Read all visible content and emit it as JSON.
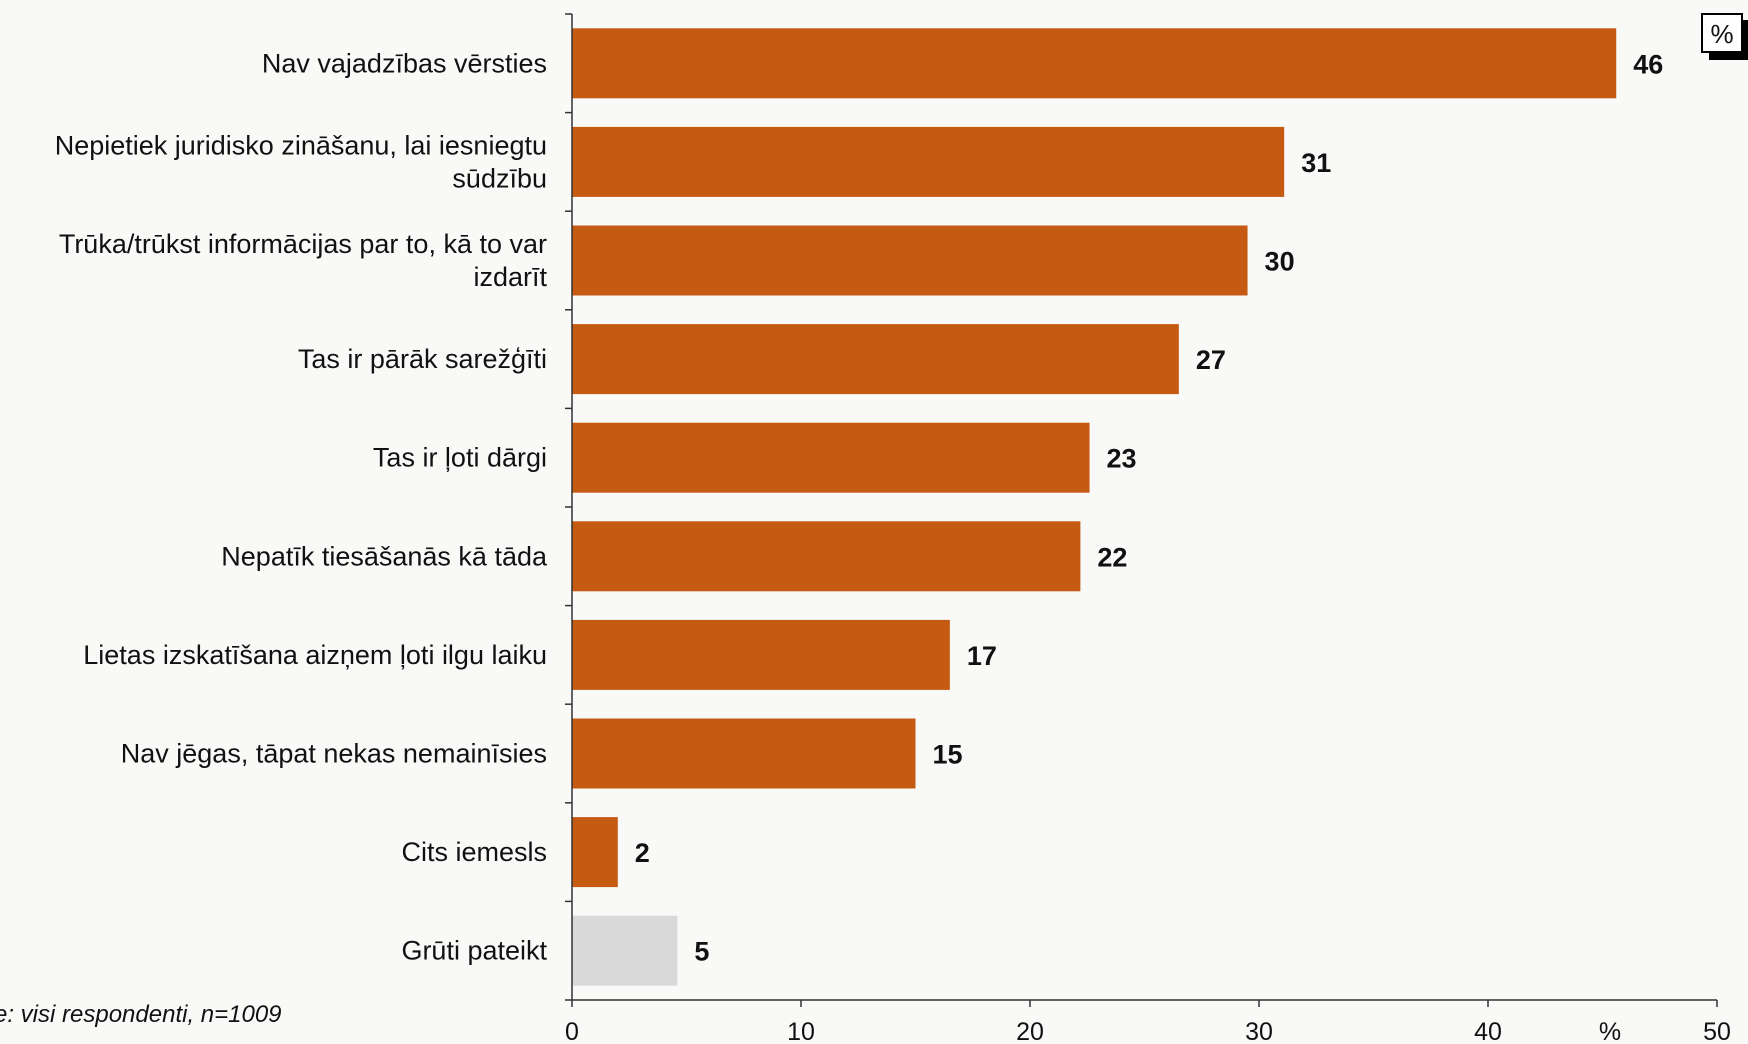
{
  "chart_data": {
    "type": "bar",
    "orientation": "horizontal",
    "categories": [
      "Nav vajadzības vērsties",
      "Nepietiek juridisko zināšanu, lai iesniegtu sūdzību",
      "Trūka/trūkst informācijas par to, kā to var izdarīt",
      "Tas ir pārāk sarežģīti",
      "Tas ir ļoti dārgi",
      "Nepatīk tiesāšanās kā tāda",
      "Lietas izskatīšana aizņem ļoti ilgu laiku",
      "Nav jēgas, tāpat nekas nemainīsies",
      "Cits iemesls",
      "Grūti pateikt"
    ],
    "category_lines": [
      [
        "Nav vajadzības vērsties"
      ],
      [
        "Nepietiek juridisko zināšanu, lai iesniegtu",
        "sūdzību"
      ],
      [
        "Trūka/trūkst informācijas par to, kā to var",
        "izdarīt"
      ],
      [
        "Tas ir pārāk sarežģīti"
      ],
      [
        "Tas ir ļoti dārgi"
      ],
      [
        "Nepatīk tiesāšanās kā tāda"
      ],
      [
        "Lietas izskatīšana aizņem ļoti ilgu laiku"
      ],
      [
        "Nav jēgas, tāpat nekas nemainīsies"
      ],
      [
        "Cits iemesls"
      ],
      [
        "Grūti pateikt"
      ]
    ],
    "values": [
      45.6,
      31.1,
      29.5,
      26.5,
      22.6,
      22.2,
      16.5,
      15.0,
      2.0,
      4.6
    ],
    "value_labels": [
      "46",
      "31",
      "30",
      "27",
      "23",
      "22",
      "17",
      "15",
      "2",
      "5"
    ],
    "bar_colors": [
      "#c55a13",
      "#c55a13",
      "#c55a13",
      "#c55a13",
      "#c55a13",
      "#c55a13",
      "#c55a13",
      "#c55a13",
      "#c55a13",
      "#d9d9d9"
    ],
    "xlim": [
      0,
      50
    ],
    "xticks": [
      0,
      10,
      20,
      30,
      40,
      50
    ],
    "xlabel": "%",
    "unit_box": "%",
    "note": "e: visi respondenti, n=1009",
    "grid": false
  }
}
